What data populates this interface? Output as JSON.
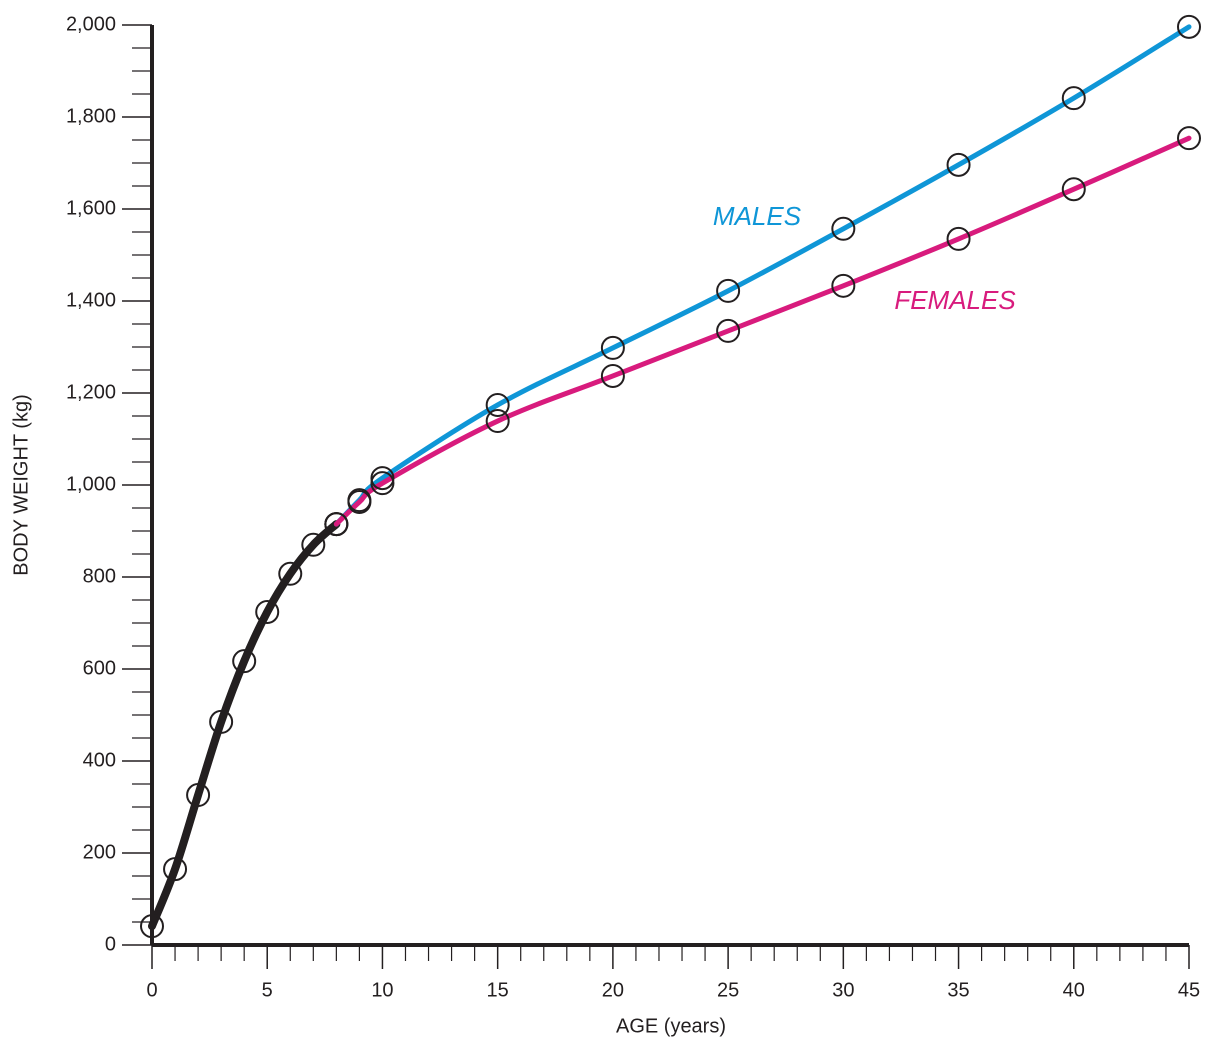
{
  "chart_data": {
    "type": "line",
    "x_label": "AGE (years)",
    "y_label": "BODY WEIGHT (kg)",
    "xlim": [
      0,
      45
    ],
    "ylim": [
      0,
      2000
    ],
    "xticks": [
      0,
      5,
      10,
      15,
      20,
      25,
      30,
      35,
      40,
      45
    ],
    "yticks": [
      0,
      200,
      400,
      600,
      800,
      {
        "value": 1000,
        "label": "1,000"
      },
      {
        "value": 1200,
        "label": "1,200"
      },
      {
        "value": 1400,
        "label": "1,400"
      },
      {
        "value": 1600,
        "label": "1,600"
      },
      {
        "value": 1800,
        "label": "1,800"
      },
      {
        "value": 2000,
        "label": "2,000"
      }
    ],
    "xminorticks": [
      1,
      2,
      3,
      4,
      6,
      7,
      8,
      9,
      11,
      12,
      13,
      14,
      16,
      17,
      18,
      19,
      21,
      22,
      23,
      24,
      26,
      27,
      28,
      29,
      31,
      32,
      33,
      34,
      36,
      37,
      38,
      39,
      41,
      42,
      43,
      44
    ],
    "yminorticks": [
      50,
      100,
      150,
      250,
      300,
      350,
      450,
      500,
      550,
      650,
      700,
      750,
      850,
      900,
      950,
      1050,
      1100,
      1150,
      1250,
      1300,
      1350,
      1450,
      1500,
      1550,
      1650,
      1700,
      1750,
      1850,
      1900,
      1950
    ],
    "series": [
      {
        "color": "#231f20",
        "x": [
          0,
          1,
          2,
          3,
          4,
          5,
          6,
          7,
          8
        ],
        "values": [
          41,
          165,
          326,
          485,
          617,
          724,
          807,
          870,
          915
        ]
      },
      {
        "name": "MALES",
        "color": "#0f96d7",
        "x": [
          8,
          9,
          10,
          15,
          20,
          25,
          30,
          35,
          40,
          45
        ],
        "values": [
          915,
          967,
          1015,
          1174,
          1298,
          1422,
          1557,
          1696,
          1841,
          1996
        ]
      },
      {
        "name": "FEMALES",
        "color": "#d81b7d",
        "x": [
          8,
          9,
          10,
          15,
          20,
          25,
          30,
          35,
          40,
          45
        ],
        "values": [
          915,
          963,
          1004,
          1139,
          1237,
          1335,
          1433,
          1535,
          1643,
          1754
        ]
      }
    ]
  }
}
